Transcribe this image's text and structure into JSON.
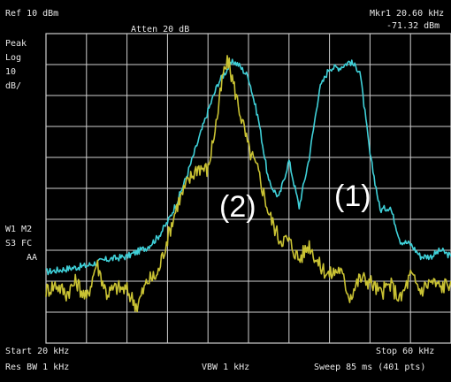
{
  "header": {
    "ref": "Ref 10 dBm",
    "atten": "Atten 20 dB",
    "mkr_label": "Mkr1",
    "mkr_freq": "20.60 kHz",
    "mkr_amp": "-71.32 dBm"
  },
  "left_panel": {
    "detector": "Peak",
    "scale_type": "Log",
    "scale_value": "10",
    "scale_unit": "dB/",
    "line1": "W1 M2",
    "line2": "S3 FC",
    "line3": "AA"
  },
  "footer": {
    "start": "Start 20 kHz",
    "stop": "Stop 60 kHz",
    "res_bw": "Res BW 1 kHz",
    "vbw": "VBW 1 kHz",
    "sweep": "Sweep 85 ms (401 pts)"
  },
  "annotations": {
    "label_1": "(1)",
    "label_2": "(2)"
  },
  "colors": {
    "background": "#000000",
    "grid": "#cfcfcf",
    "trace_1": "#3fd0d8",
    "trace_2": "#c9c233",
    "text": "#e8e8e8"
  },
  "chart_data": {
    "type": "line",
    "xlim": [
      20,
      60
    ],
    "ylim": [
      -90,
      10
    ],
    "x_unit": "kHz",
    "y_unit": "dBm",
    "grid": true,
    "series": [
      {
        "id": "trace_1",
        "x": [
          20,
          22,
          24,
          26,
          28,
          30,
          31,
          32,
          33,
          34,
          35,
          36,
          37,
          38,
          38.5,
          39,
          40,
          41,
          42,
          43,
          44,
          45,
          46,
          47,
          48,
          49,
          50,
          51,
          52,
          53,
          54,
          55,
          56,
          57,
          58,
          59,
          60
        ],
        "y": [
          -67,
          -66,
          -65,
          -63,
          -62,
          -59,
          -56,
          -51,
          -44,
          -35,
          -25,
          -15,
          -6,
          -1,
          1,
          0,
          -4,
          -18,
          -38,
          -43,
          -31,
          -46,
          -30,
          -8,
          -1,
          -1,
          1,
          -2,
          -29,
          -47,
          -46,
          -57,
          -58,
          -62,
          -62,
          -60,
          -62
        ]
      },
      {
        "id": "trace_2",
        "x": [
          20,
          21,
          22,
          23,
          24,
          25,
          26,
          27,
          28,
          29,
          30,
          31,
          32,
          33,
          34,
          35,
          36,
          37,
          37.5,
          38,
          39,
          40,
          41,
          42,
          43,
          44,
          45,
          46,
          47,
          48,
          49,
          50,
          51,
          52,
          53,
          54,
          55,
          56,
          57,
          58,
          59,
          60
        ],
        "y": [
          -73,
          -71,
          -74,
          -70,
          -76,
          -64,
          -74,
          -72,
          -73,
          -78,
          -70,
          -68,
          -56,
          -45,
          -38,
          -33,
          -34,
          -15,
          -3,
          1,
          -13,
          -27,
          -35,
          -48,
          -56,
          -57,
          -63,
          -58,
          -65,
          -68,
          -66,
          -75,
          -69,
          -70,
          -74,
          -71,
          -76,
          -68,
          -73,
          -70,
          -72,
          -70
        ]
      }
    ]
  }
}
